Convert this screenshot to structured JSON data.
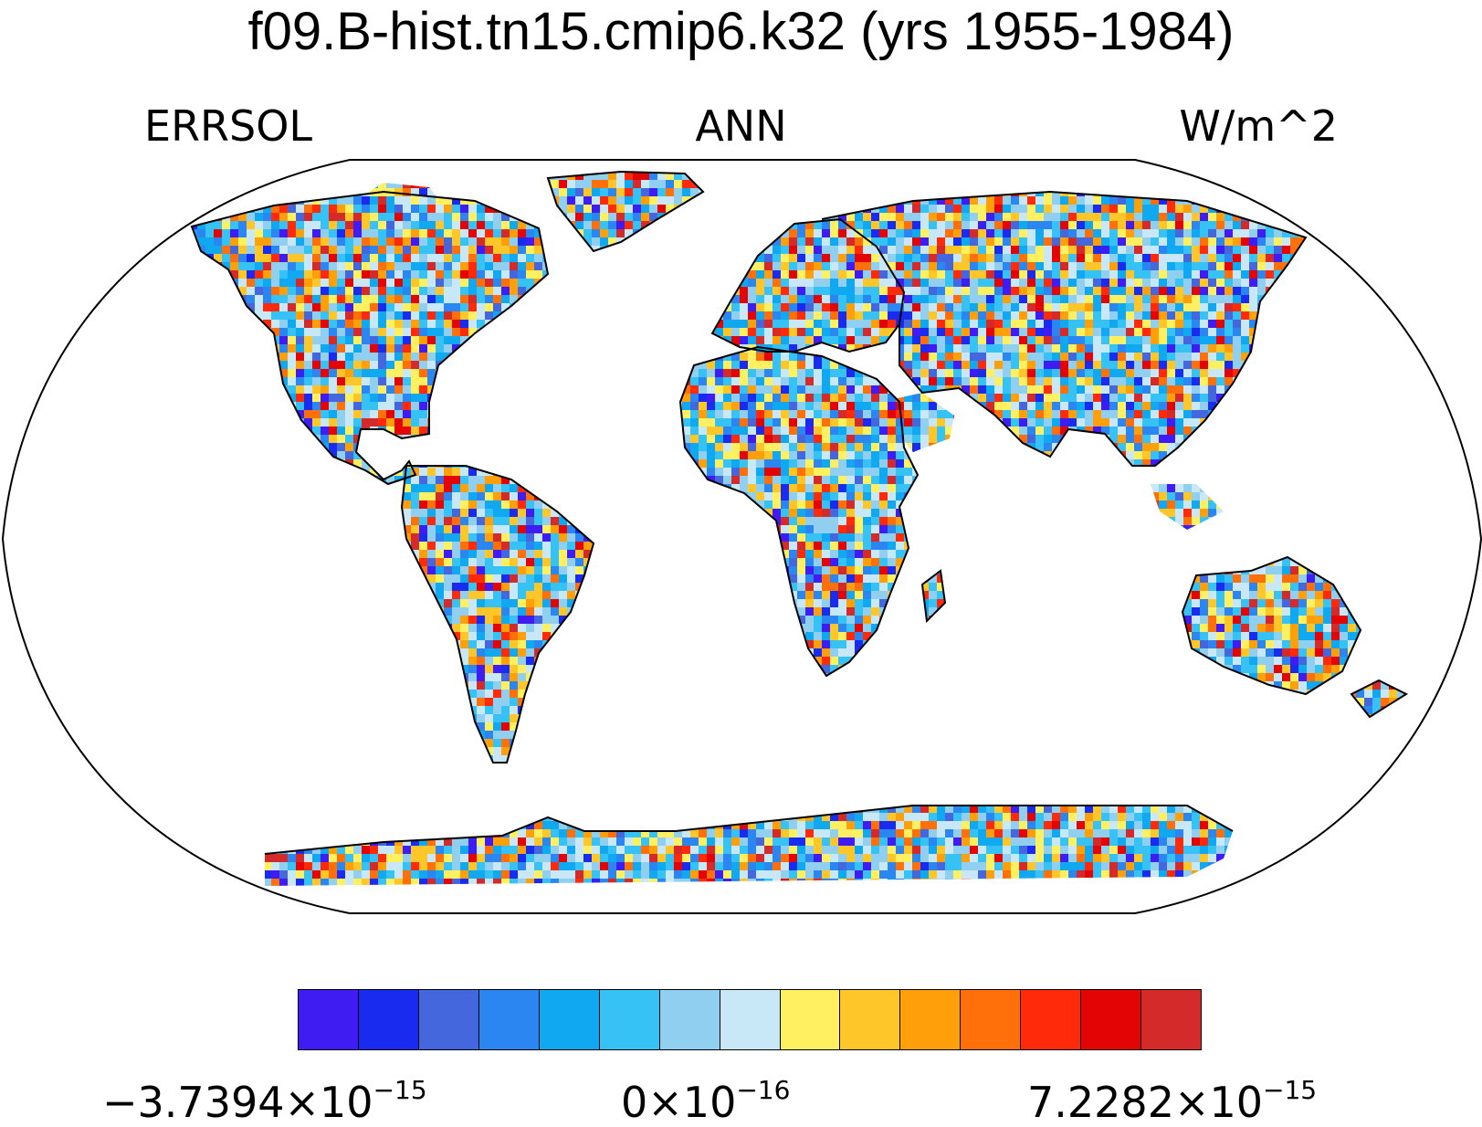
{
  "title": "f09.B-hist.tn15.cmip6.k32 (yrs 1955-1984)",
  "subtitle_left": "ERRSOL",
  "subtitle_center": "ANN",
  "subtitle_right": "W/m^2",
  "colorbar": {
    "colors": [
      "#3f1cf2",
      "#1a2bf0",
      "#4467de",
      "#2b86f2",
      "#11a8f2",
      "#37c2f6",
      "#90cff0",
      "#c8e8f8",
      "#fff062",
      "#ffc629",
      "#ff9f0a",
      "#ff6f0a",
      "#ff2a0a",
      "#e30505",
      "#d42a2a"
    ],
    "labels": [
      {
        "mantissa": "−3.7394×10",
        "exponent": "−15"
      },
      {
        "mantissa": "0×10",
        "exponent": "−16"
      },
      {
        "mantissa": "7.2282×10",
        "exponent": "−15"
      }
    ]
  },
  "map": {
    "projection": "robinson",
    "field": "ERRSOL",
    "period": "ANN",
    "units": "W/m^2",
    "color_range": [
      -3.7394e-15,
      7.2282e-15
    ]
  }
}
